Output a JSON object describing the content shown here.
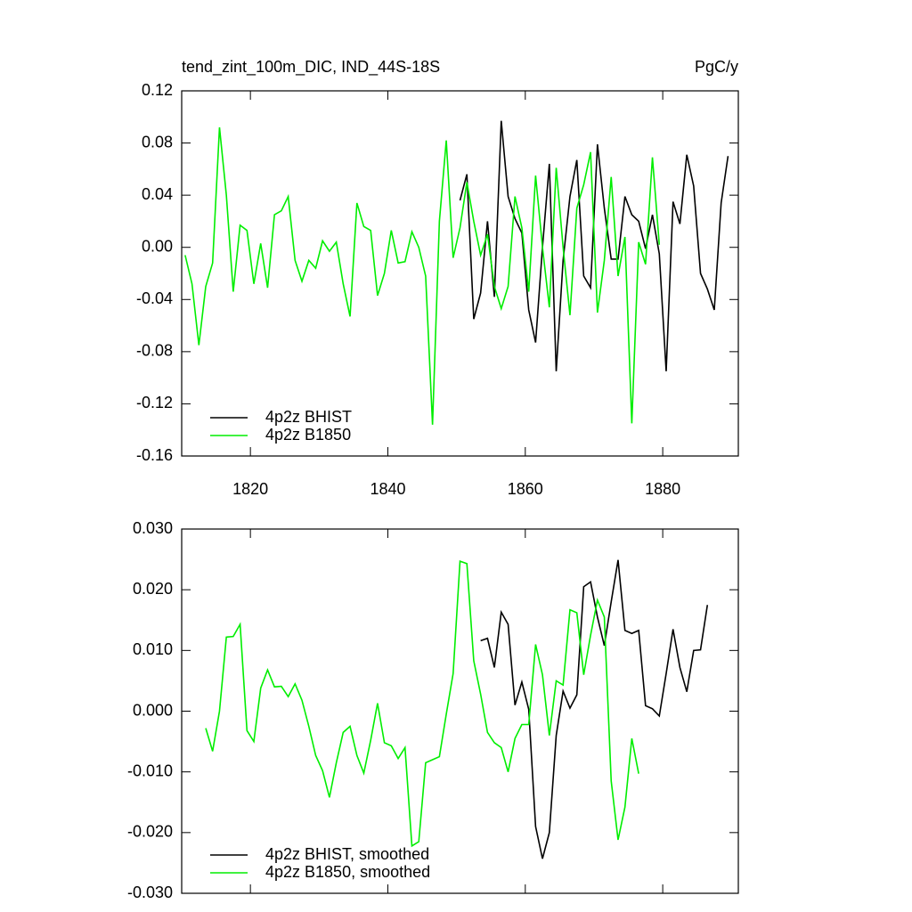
{
  "chart_data": [
    {
      "type": "line",
      "title": "tend_zint_100m_DIC, IND_44S-18S",
      "units": "PgC/y",
      "xlim": [
        1810,
        1891
      ],
      "xticks": [
        1820,
        1840,
        1860,
        1880
      ],
      "xtick_labels": true,
      "ylim": [
        -0.16,
        0.12
      ],
      "yticks": [
        -0.16,
        -0.12,
        -0.08,
        -0.04,
        {
          "value": 0,
          "label": "0.00"
        },
        0.04,
        0.08,
        0.12
      ],
      "legend": "lower left",
      "series": [
        {
          "name": "4p2z BHIST",
          "color": "#000000",
          "x": [
            1850.5,
            1851.5,
            1852.5,
            1853.5,
            1854.5,
            1855.5,
            1856.5,
            1857.5,
            1858.5,
            1859.5,
            1860.5,
            1861.5,
            1862.5,
            1863.5,
            1864.5,
            1865.5,
            1866.5,
            1867.5,
            1868.5,
            1869.5,
            1870.5,
            1871.5,
            1872.5,
            1873.5,
            1874.5,
            1875.5,
            1876.5,
            1877.5,
            1878.5,
            1879.5,
            1880.5,
            1881.5,
            1882.5,
            1883.5,
            1884.5,
            1885.5,
            1886.5,
            1887.5,
            1888.5,
            1889.5
          ],
          "values": [
            0.036,
            0.056,
            -0.055,
            -0.035,
            0.02,
            -0.038,
            0.097,
            0.039,
            0.022,
            0.011,
            -0.048,
            -0.073,
            0.0,
            0.064,
            -0.095,
            -0.01,
            0.039,
            0.067,
            -0.022,
            -0.031,
            0.079,
            0.03,
            -0.009,
            -0.009,
            0.039,
            0.025,
            0.02,
            -0.001,
            0.025,
            -0.005,
            -0.095,
            0.035,
            0.018,
            0.071,
            0.047,
            -0.02,
            -0.032,
            -0.048,
            0.034,
            0.07
          ]
        },
        {
          "name": "4p2z B1850",
          "color": "#00ee00",
          "x": [
            1810.5,
            1811.5,
            1812.5,
            1813.5,
            1814.5,
            1815.5,
            1816.5,
            1817.5,
            1818.5,
            1819.5,
            1820.5,
            1821.5,
            1822.5,
            1823.5,
            1824.5,
            1825.5,
            1826.5,
            1827.5,
            1828.5,
            1829.5,
            1830.5,
            1831.5,
            1832.5,
            1833.5,
            1834.5,
            1835.5,
            1836.5,
            1837.5,
            1838.5,
            1839.5,
            1840.5,
            1841.5,
            1842.5,
            1843.5,
            1844.5,
            1845.5,
            1846.5,
            1847.5,
            1848.5,
            1849.5,
            1850.5,
            1851.5,
            1852.5,
            1853.5,
            1854.5,
            1855.5,
            1856.5,
            1857.5,
            1858.5,
            1859.5,
            1860.5,
            1861.5,
            1862.5,
            1863.5,
            1864.5,
            1865.5,
            1866.5,
            1867.5,
            1868.5,
            1869.5,
            1870.5,
            1871.5,
            1872.5,
            1873.5,
            1874.5,
            1875.5,
            1876.5,
            1877.5,
            1878.5,
            1879.5
          ],
          "values": [
            -0.006,
            -0.028,
            -0.075,
            -0.03,
            -0.012,
            0.092,
            0.04,
            -0.034,
            0.017,
            0.013,
            -0.028,
            0.003,
            -0.031,
            0.025,
            0.028,
            0.039,
            -0.01,
            -0.026,
            -0.01,
            -0.016,
            0.005,
            -0.003,
            0.004,
            -0.028,
            -0.053,
            0.034,
            0.016,
            0.013,
            -0.037,
            -0.02,
            0.013,
            -0.012,
            -0.011,
            0.012,
            0.0,
            -0.022,
            -0.136,
            0.02,
            0.082,
            -0.008,
            0.015,
            0.05,
            0.02,
            -0.006,
            0.01,
            -0.03,
            -0.047,
            -0.03,
            0.039,
            0.015,
            -0.034,
            0.055,
            0.0,
            -0.046,
            0.061,
            0.0,
            -0.052,
            0.03,
            0.048,
            0.073,
            -0.05,
            -0.01,
            0.054,
            -0.022,
            0.008,
            -0.135,
            0.004,
            -0.013,
            0.069,
            0.002
          ]
        }
      ]
    },
    {
      "type": "line",
      "xlim": [
        1810,
        1891
      ],
      "xticks": [
        1820,
        1840,
        1860,
        1880
      ],
      "xtick_labels": false,
      "ylim": [
        -0.03,
        0.03
      ],
      "yticks": [
        {
          "value": -0.03,
          "label": "-0.030"
        },
        {
          "value": -0.02,
          "label": "-0.020"
        },
        {
          "value": -0.01,
          "label": "-0.010"
        },
        {
          "value": 0,
          "label": "0.000"
        },
        {
          "value": 0.01,
          "label": "0.010"
        },
        {
          "value": 0.02,
          "label": "0.020"
        },
        {
          "value": 0.03,
          "label": "0.030"
        }
      ],
      "legend": "lower left",
      "series": [
        {
          "name": "4p2z BHIST, smoothed",
          "color": "#000000",
          "x": [
            1853.5,
            1854.5,
            1855.5,
            1856.5,
            1857.5,
            1858.5,
            1859.5,
            1860.5,
            1861.5,
            1862.5,
            1863.5,
            1864.5,
            1865.5,
            1866.5,
            1867.5,
            1868.5,
            1869.5,
            1870.5,
            1871.5,
            1872.5,
            1873.5,
            1874.5,
            1875.5,
            1876.5,
            1877.5,
            1878.5,
            1879.5,
            1880.5,
            1881.5,
            1882.5,
            1883.5,
            1884.5,
            1885.5,
            1886.5
          ],
          "values": [
            0.0116,
            0.012,
            0.0072,
            0.0163,
            0.0143,
            0.001,
            0.0048,
            0.0003,
            -0.019,
            -0.0243,
            -0.02,
            -0.004,
            0.0033,
            0.0005,
            0.0027,
            0.0205,
            0.0213,
            0.0155,
            0.0108,
            0.018,
            0.0249,
            0.0133,
            0.0128,
            0.0133,
            0.0009,
            0.0004,
            -0.0008,
            0.0062,
            0.0135,
            0.0072,
            0.0032,
            0.01,
            0.0101,
            0.0175
          ]
        },
        {
          "name": "4p2z B1850, smoothed",
          "color": "#00ee00",
          "x": [
            1813.5,
            1814.5,
            1815.5,
            1816.5,
            1817.5,
            1818.5,
            1819.5,
            1820.5,
            1821.5,
            1822.5,
            1823.5,
            1824.5,
            1825.5,
            1826.5,
            1827.5,
            1828.5,
            1829.5,
            1830.5,
            1831.5,
            1832.5,
            1833.5,
            1834.5,
            1835.5,
            1836.5,
            1837.5,
            1838.5,
            1839.5,
            1840.5,
            1841.5,
            1842.5,
            1843.5,
            1844.5,
            1845.5,
            1846.5,
            1847.5,
            1848.5,
            1849.5,
            1850.5,
            1851.5,
            1852.5,
            1853.5,
            1854.5,
            1855.5,
            1856.5,
            1857.5,
            1858.5,
            1859.5,
            1860.5,
            1861.5,
            1862.5,
            1863.5,
            1864.5,
            1865.5,
            1866.5,
            1867.5,
            1868.5,
            1869.5,
            1870.5,
            1871.5,
            1872.5,
            1873.5,
            1874.5,
            1875.5,
            1876.5
          ],
          "values": [
            -0.0028,
            -0.0066,
            0.0,
            0.0122,
            0.0123,
            0.0143,
            -0.0032,
            -0.005,
            0.0038,
            0.0068,
            0.004,
            0.0041,
            0.0024,
            0.0045,
            0.0018,
            -0.0025,
            -0.0073,
            -0.0098,
            -0.0142,
            -0.0085,
            -0.0035,
            -0.0025,
            -0.0073,
            -0.0102,
            -0.0048,
            0.0013,
            -0.0052,
            -0.0057,
            -0.0078,
            -0.006,
            -0.0222,
            -0.0215,
            -0.0085,
            -0.008,
            -0.0075,
            -0.0005,
            0.0062,
            0.0247,
            0.0243,
            0.0083,
            0.0028,
            -0.0035,
            -0.0052,
            -0.006,
            -0.01,
            -0.0045,
            -0.0022,
            -0.0022,
            0.011,
            0.006,
            -0.004,
            0.005,
            0.0043,
            0.0167,
            0.0162,
            0.006,
            0.0125,
            0.0183,
            0.0155,
            -0.0115,
            -0.0212,
            -0.0158,
            -0.0045,
            -0.0103
          ]
        }
      ]
    }
  ]
}
